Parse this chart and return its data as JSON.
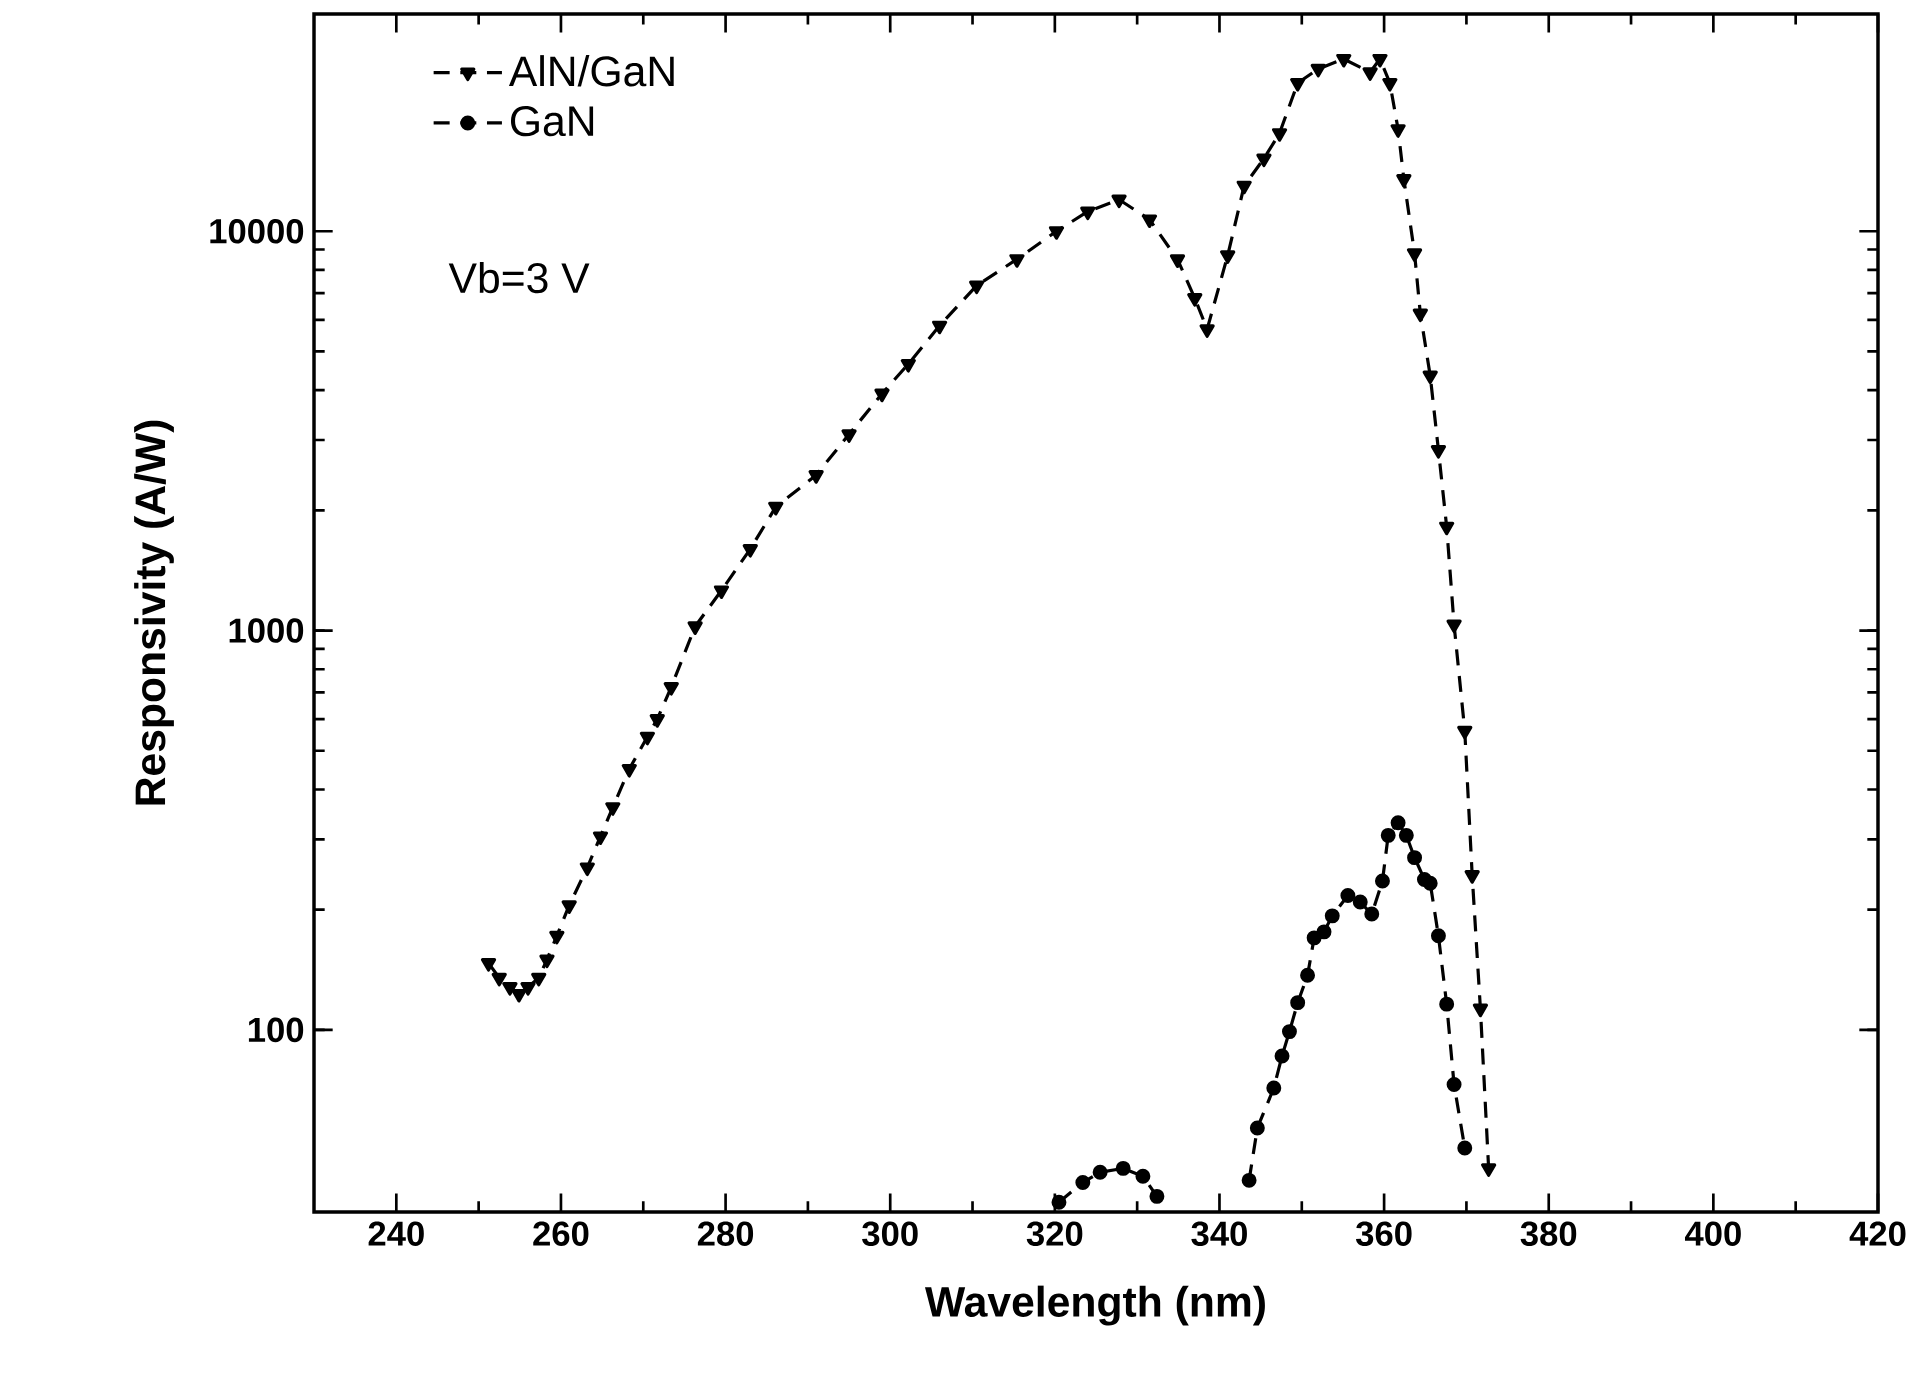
{
  "chart_data": {
    "type": "line",
    "xlabel": "Wavelength (nm)",
    "ylabel": "Responsivity (A/W)",
    "annotations": [
      "Vb=3 V"
    ],
    "xlim": [
      230,
      420
    ],
    "ylim": [
      35,
      35000
    ],
    "xticks": [
      240,
      260,
      280,
      300,
      320,
      340,
      360,
      380,
      400,
      420
    ],
    "yticks": [
      100,
      1000,
      10000
    ],
    "log": "y",
    "legend": "top left",
    "line_style": "dashed",
    "series": [
      {
        "name": "AlN/GaN",
        "color": "#000000",
        "marker": "triangle",
        "x": [
          251.2,
          252.5,
          253.8,
          254.9,
          256,
          257.3,
          258.3,
          259.5,
          261,
          263.2,
          264.8,
          266.3,
          268.3,
          270.5,
          271.7,
          273.4,
          276.3,
          279.5,
          283,
          286.1,
          291,
          295,
          299,
          302.2,
          306,
          310.5,
          315.4,
          320.2,
          324,
          327.8,
          331.5,
          334.9,
          337,
          338.5,
          341,
          343,
          345.4,
          347.3,
          349.5,
          352,
          355.1,
          358.3,
          359.5,
          360.7,
          361.7,
          362.4,
          363.7,
          364.4,
          365.6,
          366.6,
          367.6,
          368.5,
          369.8,
          370.7,
          371.7,
          372.7
        ],
        "values": [
          147,
          135,
          128,
          123,
          128,
          135,
          150,
          172,
          205,
          255,
          305,
          361,
          450,
          542,
          600,
          722,
          1024,
          1260,
          1600,
          2040,
          2450,
          3100,
          3920,
          4650,
          5800,
          7310,
          8510,
          10000,
          11200,
          12000,
          10700,
          8500,
          6800,
          5680,
          8700,
          13000,
          15200,
          17600,
          23500,
          25500,
          27000,
          25000,
          27000,
          23500,
          18000,
          13500,
          8800,
          6220,
          4350,
          2830,
          1820,
          1035,
          561,
          244,
          113,
          45
        ]
      },
      {
        "name": "GaN",
        "color": "#000000",
        "marker": "circle",
        "x": [
          320.5,
          323.4,
          325.5,
          328.3,
          330.7,
          332.4,
          338,
          343.6,
          344.6,
          346.6,
          347.6,
          348.5,
          349.5,
          350.7,
          351.5,
          352.7,
          353.7,
          355.6,
          357.1,
          358.5,
          359.8,
          360.5,
          361.7,
          362.7,
          363.7,
          364.9,
          365.6,
          366.6,
          367.6,
          368.5,
          369.8
        ],
        "values": [
          37,
          41.5,
          44,
          45,
          43,
          38.3,
          null,
          42,
          56.8,
          71.5,
          86,
          99,
          117,
          137,
          170,
          176,
          193,
          217,
          209,
          195,
          236,
          307,
          330,
          307,
          270,
          238,
          233,
          172,
          116,
          73,
          50.6
        ]
      }
    ]
  }
}
